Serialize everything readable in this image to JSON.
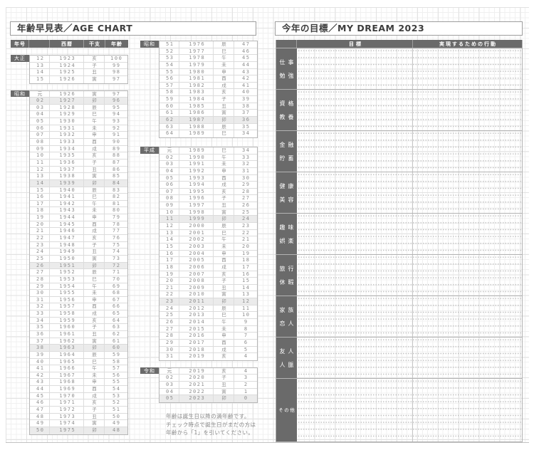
{
  "titles": {
    "age_chart": "年齢早見表／AGE CHART",
    "my_dream": "今年の目標／MY DREAM 2023"
  },
  "age_chart": {
    "headers": {
      "era": "年号",
      "year": "西暦",
      "eto": "干支",
      "age": "年齢"
    },
    "highlight_zodiac": "卯",
    "column1": [
      {
        "era": "大正",
        "rows": [
          [
            "12",
            "1923",
            "亥",
            "100"
          ],
          [
            "13",
            "1924",
            "子",
            "99"
          ],
          [
            "14",
            "1925",
            "丑",
            "98"
          ],
          [
            "15",
            "1926",
            "寅",
            "97"
          ]
        ]
      },
      {
        "era": "昭和",
        "rows": [
          [
            "元",
            "1926",
            "寅",
            "97"
          ],
          [
            "02",
            "1927",
            "卯",
            "96"
          ],
          [
            "03",
            "1928",
            "辰",
            "95"
          ],
          [
            "04",
            "1929",
            "巳",
            "94"
          ],
          [
            "05",
            "1930",
            "午",
            "93"
          ],
          [
            "06",
            "1931",
            "未",
            "92"
          ],
          [
            "07",
            "1932",
            "申",
            "91"
          ],
          [
            "08",
            "1933",
            "酉",
            "90"
          ],
          [
            "09",
            "1934",
            "戌",
            "89"
          ],
          [
            "10",
            "1935",
            "亥",
            "88"
          ],
          [
            "11",
            "1936",
            "子",
            "87"
          ],
          [
            "12",
            "1937",
            "丑",
            "86"
          ],
          [
            "13",
            "1938",
            "寅",
            "85"
          ],
          [
            "14",
            "1939",
            "卯",
            "84"
          ],
          [
            "15",
            "1940",
            "辰",
            "83"
          ],
          [
            "16",
            "1941",
            "巳",
            "82"
          ],
          [
            "17",
            "1942",
            "午",
            "81"
          ],
          [
            "18",
            "1943",
            "未",
            "80"
          ],
          [
            "19",
            "1944",
            "申",
            "79"
          ],
          [
            "20",
            "1945",
            "酉",
            "78"
          ],
          [
            "21",
            "1946",
            "戌",
            "77"
          ],
          [
            "22",
            "1947",
            "亥",
            "76"
          ],
          [
            "23",
            "1948",
            "子",
            "75"
          ],
          [
            "24",
            "1949",
            "丑",
            "74"
          ],
          [
            "25",
            "1950",
            "寅",
            "73"
          ],
          [
            "26",
            "1951",
            "卯",
            "72"
          ],
          [
            "27",
            "1952",
            "辰",
            "71"
          ],
          [
            "28",
            "1953",
            "巳",
            "70"
          ],
          [
            "29",
            "1954",
            "午",
            "69"
          ],
          [
            "30",
            "1955",
            "未",
            "68"
          ],
          [
            "31",
            "1956",
            "申",
            "67"
          ],
          [
            "32",
            "1957",
            "酉",
            "66"
          ],
          [
            "33",
            "1958",
            "戌",
            "65"
          ],
          [
            "34",
            "1959",
            "亥",
            "64"
          ],
          [
            "35",
            "1960",
            "子",
            "63"
          ],
          [
            "36",
            "1961",
            "丑",
            "62"
          ],
          [
            "37",
            "1962",
            "寅",
            "61"
          ],
          [
            "38",
            "1963",
            "卯",
            "60"
          ],
          [
            "39",
            "1964",
            "辰",
            "59"
          ],
          [
            "40",
            "1965",
            "巳",
            "58"
          ],
          [
            "41",
            "1966",
            "午",
            "57"
          ],
          [
            "42",
            "1967",
            "未",
            "56"
          ],
          [
            "43",
            "1968",
            "申",
            "55"
          ],
          [
            "44",
            "1969",
            "酉",
            "54"
          ],
          [
            "45",
            "1970",
            "戌",
            "53"
          ],
          [
            "46",
            "1971",
            "亥",
            "52"
          ],
          [
            "47",
            "1972",
            "子",
            "51"
          ],
          [
            "48",
            "1973",
            "丑",
            "50"
          ],
          [
            "49",
            "1974",
            "寅",
            "49"
          ],
          [
            "50",
            "1975",
            "卯",
            "48"
          ]
        ]
      }
    ],
    "column2": [
      {
        "era": "昭和",
        "rows": [
          [
            "51",
            "1976",
            "辰",
            "47"
          ],
          [
            "52",
            "1977",
            "巳",
            "46"
          ],
          [
            "53",
            "1978",
            "午",
            "45"
          ],
          [
            "54",
            "1979",
            "未",
            "44"
          ],
          [
            "55",
            "1980",
            "申",
            "43"
          ],
          [
            "56",
            "1981",
            "酉",
            "42"
          ],
          [
            "57",
            "1982",
            "戌",
            "41"
          ],
          [
            "58",
            "1983",
            "亥",
            "40"
          ],
          [
            "59",
            "1984",
            "子",
            "39"
          ],
          [
            "60",
            "1985",
            "丑",
            "38"
          ],
          [
            "61",
            "1986",
            "寅",
            "37"
          ],
          [
            "62",
            "1987",
            "卯",
            "36"
          ],
          [
            "63",
            "1988",
            "辰",
            "35"
          ],
          [
            "64",
            "1989",
            "巳",
            "34"
          ]
        ]
      },
      {
        "era": "平成",
        "rows": [
          [
            "元",
            "1989",
            "巳",
            "34"
          ],
          [
            "02",
            "1990",
            "午",
            "33"
          ],
          [
            "03",
            "1991",
            "未",
            "32"
          ],
          [
            "04",
            "1992",
            "申",
            "31"
          ],
          [
            "05",
            "1993",
            "酉",
            "30"
          ],
          [
            "06",
            "1994",
            "戌",
            "29"
          ],
          [
            "07",
            "1995",
            "亥",
            "28"
          ],
          [
            "08",
            "1996",
            "子",
            "27"
          ],
          [
            "09",
            "1997",
            "丑",
            "26"
          ],
          [
            "10",
            "1998",
            "寅",
            "25"
          ],
          [
            "11",
            "1999",
            "卯",
            "24"
          ],
          [
            "12",
            "2000",
            "辰",
            "23"
          ],
          [
            "13",
            "2001",
            "巳",
            "22"
          ],
          [
            "14",
            "2002",
            "午",
            "21"
          ],
          [
            "15",
            "2003",
            "未",
            "20"
          ],
          [
            "16",
            "2004",
            "申",
            "19"
          ],
          [
            "17",
            "2005",
            "酉",
            "18"
          ],
          [
            "18",
            "2006",
            "戌",
            "17"
          ],
          [
            "19",
            "2007",
            "亥",
            "16"
          ],
          [
            "20",
            "2008",
            "子",
            "15"
          ],
          [
            "21",
            "2009",
            "丑",
            "14"
          ],
          [
            "22",
            "2010",
            "寅",
            "13"
          ],
          [
            "23",
            "2011",
            "卯",
            "12"
          ],
          [
            "24",
            "2012",
            "辰",
            "11"
          ],
          [
            "25",
            "2013",
            "巳",
            "10"
          ],
          [
            "26",
            "2014",
            "午",
            "9"
          ],
          [
            "27",
            "2015",
            "未",
            "8"
          ],
          [
            "28",
            "2016",
            "申",
            "7"
          ],
          [
            "29",
            "2017",
            "酉",
            "6"
          ],
          [
            "30",
            "2018",
            "戌",
            "5"
          ],
          [
            "31",
            "2019",
            "亥",
            "4"
          ]
        ]
      },
      {
        "era": "令和",
        "rows": [
          [
            "元",
            "2019",
            "亥",
            "4"
          ],
          [
            "02",
            "2020",
            "子",
            "3"
          ],
          [
            "03",
            "2021",
            "丑",
            "2"
          ],
          [
            "04",
            "2022",
            "寅",
            "1"
          ],
          [
            "05",
            "2023",
            "卯",
            "0"
          ]
        ]
      }
    ],
    "note_lines": [
      "年齢は誕生日以降の満年齢です。",
      "チェック時点で誕生日がまだの方は",
      "年齢から「1」を引いてください。"
    ]
  },
  "dream": {
    "headers": {
      "goal": "目標",
      "action": "実現するための行動"
    },
    "categories": [
      {
        "lines": [
          "仕事",
          "勉強"
        ]
      },
      {
        "lines": [
          "資格",
          "教養"
        ]
      },
      {
        "lines": [
          "金融",
          "貯蓄"
        ]
      },
      {
        "lines": [
          "健康",
          "美容"
        ]
      },
      {
        "lines": [
          "趣味",
          "娯楽"
        ]
      },
      {
        "lines": [
          "旅行",
          "休暇"
        ]
      },
      {
        "lines": [
          "家族",
          "恋人"
        ]
      },
      {
        "lines": [
          "友人",
          "人脈"
        ]
      },
      {
        "lines": [
          "その他"
        ]
      }
    ]
  }
}
